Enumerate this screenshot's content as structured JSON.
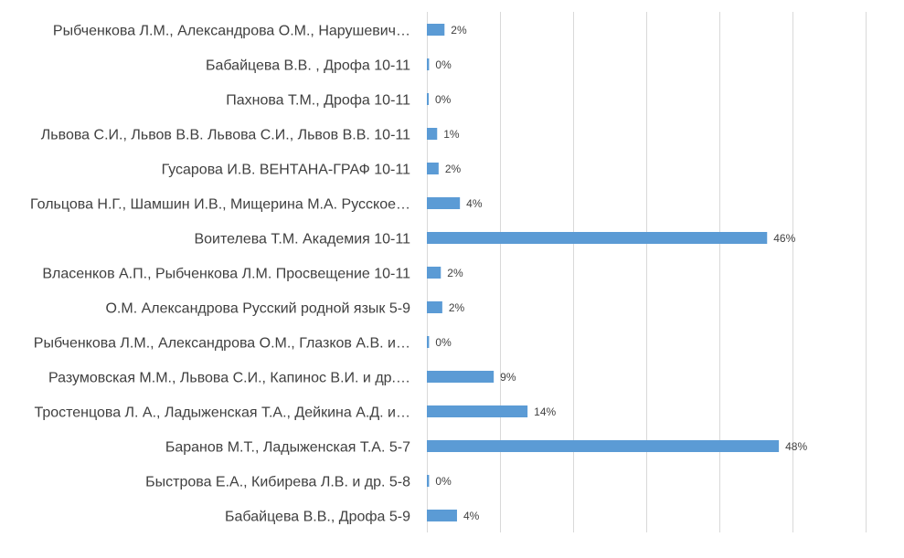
{
  "chart_data": {
    "type": "bar",
    "orientation": "horizontal",
    "title": "",
    "xlabel": "",
    "ylabel": "",
    "xlim": [
      0,
      60
    ],
    "grid": true,
    "legend": "none",
    "bar_color": "#5b9bd5",
    "grid_color": "#d9d9d9",
    "text_color": "#404040",
    "categories": [
      "Рыбченкова Л.М., Александрова О.М., Нарушевич…",
      "Бабайцева В.В. , Дрофа 10-11",
      "Пахнова Т.М., Дрофа 10-11",
      "Львова С.И., Львов В.В. Львова С.И., Львов В.В. 10-11",
      "Гусарова И.В. ВЕНТАНА-ГРАФ 10-11",
      "Гольцова Н.Г., Шамшин И.В., Мищерина М.А. Русское…",
      "Воителева Т.М. Академия 10-11",
      "Власенков А.П., Рыбченкова Л.М. Просвещение 10-11",
      "О.М. Александрова Русский родной язык 5-9",
      "Рыбченкова Л.М., Александрова О.М., Глазков А.В. и…",
      "Разумовская М.М., Львова С.И., Капинос В.И. и др.…",
      "Тростенцова Л. А., Ладыженская Т.А., Дейкина А.Д. и…",
      "Баранов М.Т., Ладыженская Т.А. 5-7",
      "Быстрова Е.А., Кибирева Л.В. и др. 5-8",
      "Бабайцева В.В., Дрофа 5-9"
    ],
    "values": [
      2.4,
      0.3,
      0.2,
      1.4,
      1.6,
      4.5,
      46.3,
      1.9,
      2.1,
      0.3,
      9.1,
      13.7,
      47.9,
      0.3,
      4.1
    ],
    "data_labels": [
      "2%",
      "0%",
      "0%",
      "1%",
      "2%",
      "4%",
      "46%",
      "2%",
      "2%",
      "0%",
      "9%",
      "14%",
      "48%",
      "0%",
      "4%"
    ]
  }
}
